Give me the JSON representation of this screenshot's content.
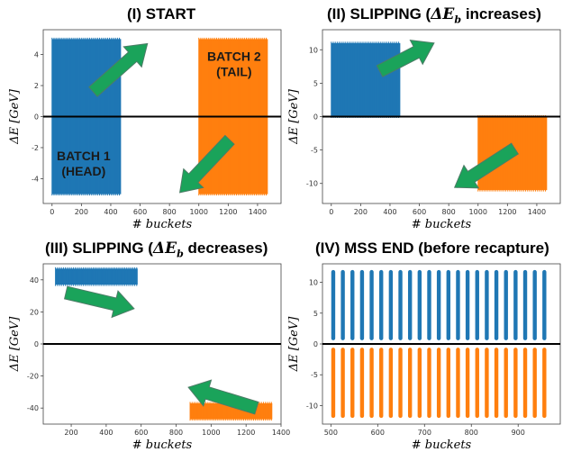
{
  "panels": [
    {
      "title": "(I) START",
      "xlabel": "# buckets",
      "ylabel": "ΔE [GeV]",
      "xlim": [
        -60,
        1560
      ],
      "ylim": [
        -5.6,
        5.6
      ],
      "xticks": [
        0,
        200,
        400,
        600,
        800,
        1000,
        1200,
        1400
      ],
      "yticks": [
        -4,
        -2,
        0,
        2,
        4
      ],
      "batches": [
        {
          "name": "BATCH 1",
          "x0": 0,
          "x1": 470,
          "y0": -5,
          "y1": 5,
          "color": "#1f77b4"
        },
        {
          "name": "BATCH 2",
          "x0": 1000,
          "x1": 1470,
          "y0": -5,
          "y1": 5,
          "color": "#ff7f0e"
        }
      ],
      "annotations": [
        {
          "lines": [
            "BATCH 1",
            "(HEAD)"
          ],
          "x": 215,
          "y": -2.8
        },
        {
          "lines": [
            "BATCH 2",
            "(TAIL)"
          ],
          "x": 1240,
          "y": 3.6
        }
      ],
      "arrows": [
        {
          "from": [
            280,
            1.6
          ],
          "to": [
            650,
            4.7
          ]
        },
        {
          "from": [
            1210,
            -1.5
          ],
          "to": [
            870,
            -4.9
          ]
        }
      ]
    },
    {
      "title": "(II) SLIPPING (ΔEb increases)",
      "xlabel": "# buckets",
      "ylabel": "ΔE [GeV]",
      "xlim": [
        -60,
        1560
      ],
      "ylim": [
        -13,
        13
      ],
      "xticks": [
        0,
        200,
        400,
        600,
        800,
        1000,
        1200,
        1400
      ],
      "yticks": [
        -10,
        -5,
        0,
        5,
        10
      ],
      "batches": [
        {
          "name": "BATCH 1",
          "x0": 0,
          "x1": 470,
          "y0": 0,
          "y1": 11,
          "color": "#1f77b4"
        },
        {
          "name": "BATCH 2",
          "x0": 1000,
          "x1": 1470,
          "y0": -11,
          "y1": 0,
          "color": "#ff7f0e"
        }
      ],
      "annotations": [],
      "arrows": [
        {
          "from": [
            330,
            6.8
          ],
          "to": [
            700,
            11
          ]
        },
        {
          "from": [
            1250,
            -4.8
          ],
          "to": [
            840,
            -10.6
          ]
        }
      ]
    },
    {
      "title": "(III) SLIPPING (ΔEb decreases)",
      "xlabel": "# buckets",
      "ylabel": "ΔE [GeV]",
      "xlim": [
        40,
        1400
      ],
      "ylim": [
        -50,
        50
      ],
      "xticks": [
        200,
        400,
        600,
        800,
        1000,
        1200,
        1400
      ],
      "yticks": [
        -40,
        -20,
        0,
        20,
        40
      ],
      "batches": [
        {
          "name": "BATCH 1",
          "x0": 110,
          "x1": 580,
          "y0": 37,
          "y1": 47,
          "color": "#1f77b4"
        },
        {
          "name": "BATCH 2",
          "x0": 880,
          "x1": 1350,
          "y0": -47,
          "y1": -37,
          "color": "#ff7f0e"
        }
      ],
      "annotations": [],
      "arrows": [
        {
          "from": [
            170,
            32
          ],
          "to": [
            560,
            22
          ]
        },
        {
          "from": [
            1260,
            -40
          ],
          "to": [
            870,
            -27
          ]
        }
      ]
    },
    {
      "title": "(IV) MSS END (before recapture)",
      "xlabel": "# buckets",
      "ylabel": "ΔE [GeV]",
      "xlim": [
        482,
        990
      ],
      "ylim": [
        -13,
        13
      ],
      "xticks": [
        500,
        600,
        700,
        800,
        900
      ],
      "yticks": [
        -10,
        -5,
        0,
        5,
        10
      ],
      "stripes": {
        "start": 505,
        "step": 20.5,
        "count": 23,
        "upper": [
          0.6,
          12
        ],
        "lower": [
          -12,
          -0.6
        ],
        "upper_color": "#1f77b4",
        "lower_color": "#ff7f0e"
      },
      "batches": [],
      "annotations": [],
      "arrows": []
    }
  ],
  "colors": {
    "blue": "#1f77b4",
    "orange": "#ff7f0e",
    "arrow": "#1aa35a",
    "arrow_edge": "#4c7c66"
  }
}
